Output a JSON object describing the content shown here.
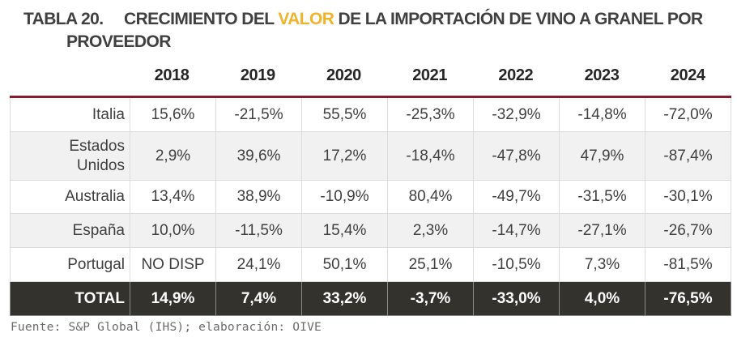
{
  "title": {
    "number": "TABLA 20.",
    "text_before": "CRECIMIENTO DEL ",
    "highlight": "VALOR",
    "text_after": " DE LA IMPORTACIÓN DE VINO A GRANEL POR",
    "line2": "PROVEEDOR",
    "highlight_color": "#f0b429"
  },
  "columns": [
    "2018",
    "2019",
    "2020",
    "2021",
    "2022",
    "2023",
    "2024"
  ],
  "rows": [
    {
      "label": "Italia",
      "values": [
        "15,6%",
        "-21,5%",
        "55,5%",
        "-25,3%",
        "-32,9%",
        "-14,8%",
        "-72,0%"
      ]
    },
    {
      "label_line1": "Estados",
      "label_line2": "Unidos",
      "values": [
        "2,9%",
        "39,6%",
        "17,2%",
        "-18,4%",
        "-47,8%",
        "47,9%",
        "-87,4%"
      ]
    },
    {
      "label": "Australia",
      "values": [
        "13,4%",
        "38,9%",
        "-10,9%",
        "80,4%",
        "-49,7%",
        "-31,5%",
        "-30,1%"
      ]
    },
    {
      "label": "España",
      "values": [
        "10,0%",
        "-11,5%",
        "15,4%",
        "2,3%",
        "-14,7%",
        "-27,1%",
        "-26,7%"
      ]
    },
    {
      "label": "Portugal",
      "values": [
        "NO DISP",
        "24,1%",
        "50,1%",
        "25,1%",
        "-10,5%",
        "7,3%",
        "-81,5%"
      ]
    }
  ],
  "total": {
    "label": "TOTAL",
    "values": [
      "14,9%",
      "7,4%",
      "33,2%",
      "-3,7%",
      "-33,0%",
      "4,0%",
      "-76,5%"
    ]
  },
  "footer": "Fuente: S&P Global (IHS); elaboración: OIVE",
  "colors": {
    "header_rule": "#8b1a2f",
    "total_bg": "#33322d",
    "stripe": "#f1f1f1"
  }
}
